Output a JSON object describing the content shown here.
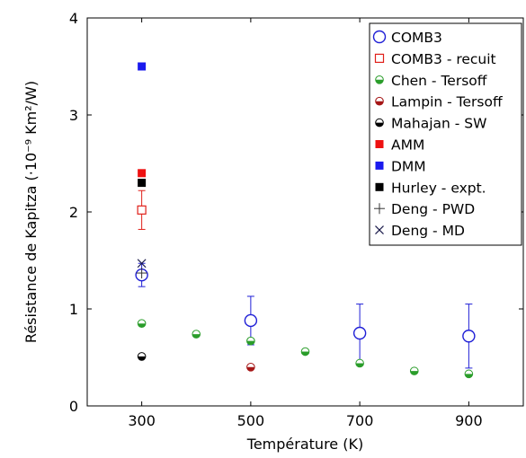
{
  "chart_data": {
    "type": "scatter",
    "xlabel": "Température (K)",
    "ylabel": "Résistance de Kapitza (·10⁻⁹ Km²/W)",
    "xlim": [
      200,
      1000
    ],
    "ylim": [
      0,
      4
    ],
    "xticks": [
      "300",
      "500",
      "700",
      "900"
    ],
    "yticks": [
      "0",
      "1",
      "2",
      "3",
      "4"
    ],
    "grid": false,
    "legend_position": "top-right",
    "series": [
      {
        "name": "COMB3",
        "marker": "circle-open",
        "color": "#1f1fd6",
        "points": [
          {
            "x": 300,
            "y": 1.35,
            "err": 0.12
          },
          {
            "x": 500,
            "y": 0.88,
            "err": 0.25
          },
          {
            "x": 700,
            "y": 0.75,
            "err": 0.3
          },
          {
            "x": 900,
            "y": 0.72,
            "err": 0.33
          }
        ]
      },
      {
        "name": "COMB3 - recuit",
        "marker": "square-open",
        "color": "#e0201a",
        "points": [
          {
            "x": 300,
            "y": 2.02,
            "err": 0.2
          }
        ]
      },
      {
        "name": "Chen - Tersoff",
        "marker": "circle-half",
        "color": "#2a9d2a",
        "points": [
          {
            "x": 300,
            "y": 0.85
          },
          {
            "x": 400,
            "y": 0.74
          },
          {
            "x": 500,
            "y": 0.67
          },
          {
            "x": 600,
            "y": 0.56
          },
          {
            "x": 700,
            "y": 0.44
          },
          {
            "x": 800,
            "y": 0.36
          },
          {
            "x": 900,
            "y": 0.33
          }
        ]
      },
      {
        "name": "Lampin - Tersoff",
        "marker": "circle-half",
        "color": "#a51616",
        "points": [
          {
            "x": 500,
            "y": 0.4
          }
        ]
      },
      {
        "name": "Mahajan - SW",
        "marker": "circle-half",
        "color": "#000000",
        "points": [
          {
            "x": 300,
            "y": 0.51
          }
        ]
      },
      {
        "name": "AMM",
        "marker": "square-filled",
        "color": "#ee1111",
        "points": [
          {
            "x": 300,
            "y": 2.4
          }
        ]
      },
      {
        "name": "DMM",
        "marker": "square-filled",
        "color": "#1a1aee",
        "points": [
          {
            "x": 300,
            "y": 3.5
          }
        ]
      },
      {
        "name": "Hurley - expt.",
        "marker": "square-filled",
        "color": "#000000",
        "points": [
          {
            "x": 300,
            "y": 2.3
          }
        ]
      },
      {
        "name": "Deng - PWD",
        "marker": "plus",
        "color": "#333333",
        "points": [
          {
            "x": 300,
            "y": 1.37
          }
        ]
      },
      {
        "name": "Deng - MD",
        "marker": "cross",
        "color": "#1a1a4a",
        "points": [
          {
            "x": 300,
            "y": 1.47
          }
        ]
      }
    ]
  }
}
